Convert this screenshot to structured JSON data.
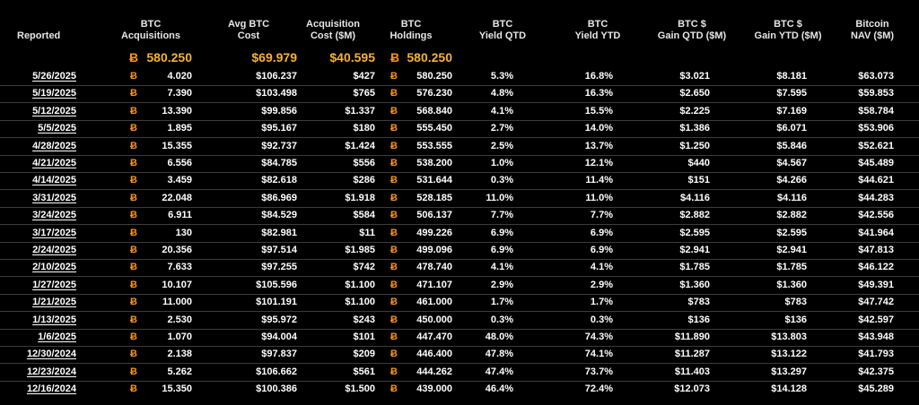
{
  "colors": {
    "background": "#000000",
    "text": "#ffffff",
    "bitcoin_orange": "#f7931a",
    "totals_gold": "#f5b13b"
  },
  "btc_symbol": "Ƀ",
  "headers": {
    "reported": "Reported",
    "acquisitions": [
      "BTC",
      "Acquisitions"
    ],
    "avg_cost": [
      "Avg BTC",
      "Cost"
    ],
    "acq_cost": [
      "Acquisition",
      "Cost ($M)"
    ],
    "holdings": [
      "BTC",
      "Holdings"
    ],
    "yield_qtd": [
      "BTC",
      "Yield QTD"
    ],
    "yield_ytd": [
      "BTC",
      "Yield YTD"
    ],
    "gain_qtd": [
      "BTC $",
      "Gain QTD ($M)"
    ],
    "gain_ytd": [
      "BTC $",
      "Gain YTD ($M)"
    ],
    "nav": [
      "Bitcoin",
      "NAV ($M)"
    ]
  },
  "totals": {
    "acquisitions": "580.250",
    "avg_cost": "$69.979",
    "acq_cost": "$40.595",
    "holdings": "580.250"
  },
  "rows": [
    {
      "date": "5/26/2025",
      "acq": "4.020",
      "avg": "$106.237",
      "cost": "$427",
      "hold": "580.250",
      "yq": "5.3%",
      "yy": "16.8%",
      "gq": "$3.021",
      "gy": "$8.181",
      "nav": "$63.073"
    },
    {
      "date": "5/19/2025",
      "acq": "7.390",
      "avg": "$103.498",
      "cost": "$765",
      "hold": "576.230",
      "yq": "4.8%",
      "yy": "16.3%",
      "gq": "$2.650",
      "gy": "$7.595",
      "nav": "$59.853"
    },
    {
      "date": "5/12/2025",
      "acq": "13.390",
      "avg": "$99.856",
      "cost": "$1.337",
      "hold": "568.840",
      "yq": "4.1%",
      "yy": "15.5%",
      "gq": "$2.225",
      "gy": "$7.169",
      "nav": "$58.784"
    },
    {
      "date": "5/5/2025",
      "acq": "1.895",
      "avg": "$95.167",
      "cost": "$180",
      "hold": "555.450",
      "yq": "2.7%",
      "yy": "14.0%",
      "gq": "$1.386",
      "gy": "$6.071",
      "nav": "$53.906"
    },
    {
      "date": "4/28/2025",
      "acq": "15.355",
      "avg": "$92.737",
      "cost": "$1.424",
      "hold": "553.555",
      "yq": "2.5%",
      "yy": "13.7%",
      "gq": "$1.250",
      "gy": "$5.846",
      "nav": "$52.621"
    },
    {
      "date": "4/21/2025",
      "acq": "6.556",
      "avg": "$84.785",
      "cost": "$556",
      "hold": "538.200",
      "yq": "1.0%",
      "yy": "12.1%",
      "gq": "$440",
      "gy": "$4.567",
      "nav": "$45.489"
    },
    {
      "date": "4/14/2025",
      "acq": "3.459",
      "avg": "$82.618",
      "cost": "$286",
      "hold": "531.644",
      "yq": "0.3%",
      "yy": "11.4%",
      "gq": "$151",
      "gy": "$4.266",
      "nav": "$44.621"
    },
    {
      "date": "3/31/2025",
      "acq": "22.048",
      "avg": "$86.969",
      "cost": "$1.918",
      "hold": "528.185",
      "yq": "11.0%",
      "yy": "11.0%",
      "gq": "$4.116",
      "gy": "$4.116",
      "nav": "$44.283"
    },
    {
      "date": "3/24/2025",
      "acq": "6.911",
      "avg": "$84.529",
      "cost": "$584",
      "hold": "506.137",
      "yq": "7.7%",
      "yy": "7.7%",
      "gq": "$2.882",
      "gy": "$2.882",
      "nav": "$42.556"
    },
    {
      "date": "3/17/2025",
      "acq": "130",
      "avg": "$82.981",
      "cost": "$11",
      "hold": "499.226",
      "yq": "6.9%",
      "yy": "6.9%",
      "gq": "$2.595",
      "gy": "$2.595",
      "nav": "$41.964"
    },
    {
      "date": "2/24/2025",
      "acq": "20.356",
      "avg": "$97.514",
      "cost": "$1.985",
      "hold": "499.096",
      "yq": "6.9%",
      "yy": "6.9%",
      "gq": "$2.941",
      "gy": "$2.941",
      "nav": "$47.813"
    },
    {
      "date": "2/10/2025",
      "acq": "7.633",
      "avg": "$97.255",
      "cost": "$742",
      "hold": "478.740",
      "yq": "4.1%",
      "yy": "4.1%",
      "gq": "$1.785",
      "gy": "$1.785",
      "nav": "$46.122"
    },
    {
      "date": "1/27/2025",
      "acq": "10.107",
      "avg": "$105.596",
      "cost": "$1.100",
      "hold": "471.107",
      "yq": "2.9%",
      "yy": "2.9%",
      "gq": "$1.360",
      "gy": "$1.360",
      "nav": "$49.391"
    },
    {
      "date": "1/21/2025",
      "acq": "11.000",
      "avg": "$101.191",
      "cost": "$1.100",
      "hold": "461.000",
      "yq": "1.7%",
      "yy": "1.7%",
      "gq": "$783",
      "gy": "$783",
      "nav": "$47.742"
    },
    {
      "date": "1/13/2025",
      "acq": "2.530",
      "avg": "$95.972",
      "cost": "$243",
      "hold": "450.000",
      "yq": "0.3%",
      "yy": "0.3%",
      "gq": "$136",
      "gy": "$136",
      "nav": "$42.597"
    },
    {
      "date": "1/6/2025",
      "acq": "1.070",
      "avg": "$94.004",
      "cost": "$101",
      "hold": "447.470",
      "yq": "48.0%",
      "yy": "74.3%",
      "gq": "$11.890",
      "gy": "$13.803",
      "nav": "$43.948"
    },
    {
      "date": "12/30/2024",
      "acq": "2.138",
      "avg": "$97.837",
      "cost": "$209",
      "hold": "446.400",
      "yq": "47.8%",
      "yy": "74.1%",
      "gq": "$11.287",
      "gy": "$13.122",
      "nav": "$41.793"
    },
    {
      "date": "12/23/2024",
      "acq": "5.262",
      "avg": "$106.662",
      "cost": "$561",
      "hold": "444.262",
      "yq": "47.4%",
      "yy": "73.7%",
      "gq": "$11.403",
      "gy": "$13.297",
      "nav": "$42.375"
    },
    {
      "date": "12/16/2024",
      "acq": "15.350",
      "avg": "$100.386",
      "cost": "$1.500",
      "hold": "439.000",
      "yq": "46.4%",
      "yy": "72.4%",
      "gq": "$12.073",
      "gy": "$14.128",
      "nav": "$45.289"
    }
  ]
}
